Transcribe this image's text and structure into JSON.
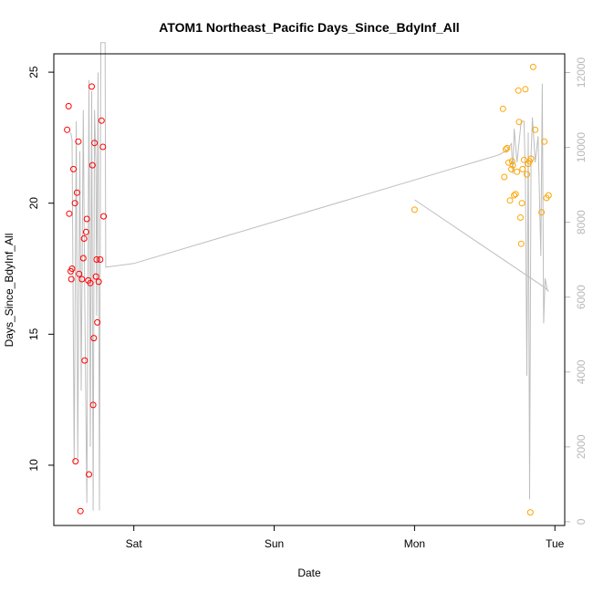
{
  "chart_data": {
    "type": "scatter",
    "title": "ATOM1 Northeast_Pacific Days_Since_BdyInf_All",
    "xlabel": "Date",
    "ylabel": "Days_Since_BdyInf_All",
    "x_unit": "day",
    "x_ticks": [
      {
        "value": 1.0,
        "label": "Sat"
      },
      {
        "value": 2.0,
        "label": "Sun"
      },
      {
        "value": 3.0,
        "label": "Mon"
      },
      {
        "value": 4.0,
        "label": "Tue"
      }
    ],
    "xlim": [
      0.43,
      4.07
    ],
    "ylim": [
      7.7,
      25.7
    ],
    "y_ticks": [
      10,
      15,
      20,
      25
    ],
    "y2lim": [
      -100,
      12500
    ],
    "y2_ticks": [
      0,
      2000,
      4000,
      6000,
      8000,
      10000,
      12000
    ],
    "grid": false,
    "legend": "none",
    "colors": {
      "series_a": "#ff0000",
      "series_b": "#ffa500",
      "line": "#bebebe",
      "axis_right": "#b8b8b8"
    },
    "series": [
      {
        "color": "#ff0000",
        "points": [
          [
            0.525,
            22.8
          ],
          [
            0.535,
            23.7
          ],
          [
            0.54,
            19.6
          ],
          [
            0.55,
            17.4
          ],
          [
            0.555,
            17.1
          ],
          [
            0.56,
            17.5
          ],
          [
            0.57,
            21.3
          ],
          [
            0.58,
            20.0
          ],
          [
            0.585,
            10.15
          ],
          [
            0.595,
            20.4
          ],
          [
            0.605,
            22.35
          ],
          [
            0.61,
            17.3
          ],
          [
            0.62,
            8.25
          ],
          [
            0.63,
            17.1
          ],
          [
            0.64,
            17.9
          ],
          [
            0.645,
            18.65
          ],
          [
            0.65,
            14.0
          ],
          [
            0.66,
            18.9
          ],
          [
            0.665,
            19.4
          ],
          [
            0.675,
            17.05
          ],
          [
            0.68,
            9.65
          ],
          [
            0.69,
            16.95
          ],
          [
            0.7,
            24.45
          ],
          [
            0.705,
            21.45
          ],
          [
            0.71,
            12.3
          ],
          [
            0.715,
            14.85
          ],
          [
            0.72,
            22.3
          ],
          [
            0.73,
            17.2
          ],
          [
            0.735,
            17.85
          ],
          [
            0.74,
            15.45
          ],
          [
            0.75,
            17.0
          ],
          [
            0.76,
            17.85
          ],
          [
            0.77,
            23.15
          ],
          [
            0.78,
            22.15
          ],
          [
            0.785,
            19.5
          ]
        ]
      },
      {
        "color": "#ffa500",
        "points": [
          [
            3.0,
            19.75
          ],
          [
            3.63,
            23.6
          ],
          [
            3.64,
            21.0
          ],
          [
            3.65,
            22.05
          ],
          [
            3.66,
            22.1
          ],
          [
            3.67,
            21.55
          ],
          [
            3.68,
            20.1
          ],
          [
            3.69,
            21.3
          ],
          [
            3.695,
            21.6
          ],
          [
            3.7,
            21.45
          ],
          [
            3.71,
            20.3
          ],
          [
            3.72,
            20.35
          ],
          [
            3.73,
            21.2
          ],
          [
            3.74,
            24.3
          ],
          [
            3.745,
            23.1
          ],
          [
            3.755,
            19.45
          ],
          [
            3.76,
            18.45
          ],
          [
            3.765,
            20.0
          ],
          [
            3.77,
            21.3
          ],
          [
            3.78,
            21.65
          ],
          [
            3.79,
            24.35
          ],
          [
            3.8,
            21.1
          ],
          [
            3.81,
            21.5
          ],
          [
            3.82,
            21.6
          ],
          [
            3.825,
            8.2
          ],
          [
            3.83,
            21.7
          ],
          [
            3.845,
            25.2
          ],
          [
            3.86,
            22.8
          ],
          [
            3.905,
            19.65
          ],
          [
            3.925,
            22.35
          ],
          [
            3.94,
            20.2
          ],
          [
            3.955,
            20.3
          ]
        ]
      }
    ],
    "secondary_line": {
      "axis": "right",
      "color": "#bebebe",
      "points": [
        [
          0.55,
          10400
        ],
        [
          0.56,
          10200
        ],
        [
          0.575,
          1600
        ],
        [
          0.59,
          10700
        ],
        [
          0.6,
          1700
        ],
        [
          0.615,
          9900
        ],
        [
          0.625,
          3500
        ],
        [
          0.64,
          11000
        ],
        [
          0.65,
          6200
        ],
        [
          0.665,
          500
        ],
        [
          0.68,
          11800
        ],
        [
          0.69,
          2000
        ],
        [
          0.7,
          11500
        ],
        [
          0.71,
          300
        ],
        [
          0.72,
          11000
        ],
        [
          0.73,
          9500
        ],
        [
          0.735,
          5500
        ],
        [
          0.745,
          12000
        ],
        [
          0.755,
          300
        ],
        [
          0.765,
          12800
        ],
        [
          0.795,
          12800
        ],
        [
          0.8,
          6800
        ],
        [
          1.0,
          6900
        ],
        [
          3.6,
          9800
        ],
        [
          3.65,
          9900
        ],
        [
          3.69,
          10100
        ],
        [
          3.7,
          9300
        ],
        [
          3.71,
          10500
        ],
        [
          3.73,
          9600
        ],
        [
          3.76,
          10700
        ],
        [
          3.78,
          10700
        ],
        [
          3.79,
          9200
        ],
        [
          3.8,
          3900
        ],
        [
          3.81,
          10400
        ],
        [
          3.82,
          600
        ],
        [
          3.83,
          9800
        ],
        [
          3.84,
          10800
        ],
        [
          3.86,
          9600
        ],
        [
          3.88,
          10300
        ],
        [
          3.9,
          7100
        ],
        [
          3.91,
          11700
        ],
        [
          3.92,
          5300
        ],
        [
          3.93,
          6500
        ],
        [
          3.945,
          6200
        ],
        [
          3.955,
          6150
        ],
        [
          3.93,
          6250
        ],
        [
          3.0,
          8600
        ]
      ]
    }
  }
}
